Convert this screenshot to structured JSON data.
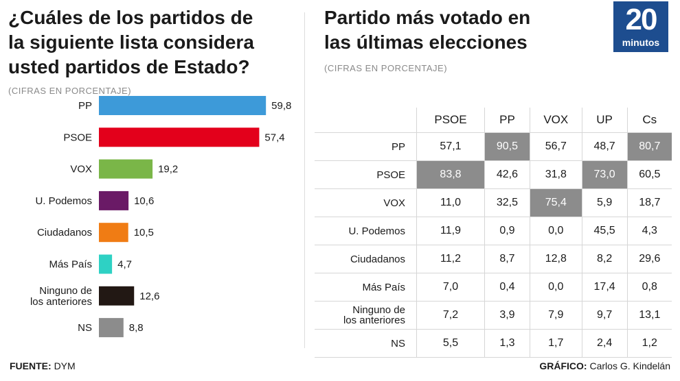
{
  "left_panel": {
    "title_lines": [
      "¿Cuáles de los partidos de",
      "la siguiente lista considera",
      "usted partidos de Estado?"
    ],
    "subtitle": "(CIFRAS EN PORCENTAJE)"
  },
  "right_panel": {
    "title_lines": [
      "Partido más votado en",
      "las últimas elecciones"
    ],
    "subtitle": "(CIFRAS EN PORCENTAJE)"
  },
  "logo": {
    "number": "20",
    "word": "minutos",
    "color": "#1d4d8f"
  },
  "chart_data": [
    {
      "type": "bar",
      "orientation": "horizontal",
      "title": "¿Cuáles de los partidos de la siguiente lista considera usted partidos de Estado?",
      "subtitle": "(CIFRAS EN PORCENTAJE)",
      "categories": [
        "PP",
        "PSOE",
        "VOX",
        "U. Podemos",
        "Ciudadanos",
        "Más País",
        "Ninguno de los anteriores",
        "NS"
      ],
      "label_lines": [
        [
          "PP"
        ],
        [
          "PSOE"
        ],
        [
          "VOX"
        ],
        [
          "U. Podemos"
        ],
        [
          "Ciudadanos"
        ],
        [
          "Más País"
        ],
        [
          "Ninguno de",
          "los anteriores"
        ],
        [
          "NS"
        ]
      ],
      "values": [
        59.8,
        57.4,
        19.2,
        10.6,
        10.5,
        4.7,
        12.6,
        8.8
      ],
      "value_labels": [
        "59,8",
        "57,4",
        "19,2",
        "10,6",
        "10,5",
        "4,7",
        "12,6",
        "8,8"
      ],
      "colors": [
        "#3d9ad9",
        "#e3001b",
        "#7ab648",
        "#6a1a66",
        "#f07c14",
        "#2ed1c4",
        "#221814",
        "#8c8c8c"
      ],
      "xlim": [
        0,
        60
      ]
    },
    {
      "type": "table",
      "title": "Partido más votado en las últimas elecciones",
      "subtitle": "(CIFRAS EN PORCENTAJE)",
      "columns": [
        "PSOE",
        "PP",
        "VOX",
        "UP",
        "Cs"
      ],
      "rows": [
        {
          "label": [
            "PP"
          ],
          "values": [
            "57,1",
            "90,5",
            "56,7",
            "48,7",
            "80,7"
          ],
          "highlight": [
            false,
            true,
            false,
            false,
            true
          ]
        },
        {
          "label": [
            "PSOE"
          ],
          "values": [
            "83,8",
            "42,6",
            "31,8",
            "73,0",
            "60,5"
          ],
          "highlight": [
            true,
            false,
            false,
            true,
            false
          ]
        },
        {
          "label": [
            "VOX"
          ],
          "values": [
            "11,0",
            "32,5",
            "75,4",
            "5,9",
            "18,7"
          ],
          "highlight": [
            false,
            false,
            true,
            false,
            false
          ]
        },
        {
          "label": [
            "U. Podemos"
          ],
          "values": [
            "11,9",
            "0,9",
            "0,0",
            "45,5",
            "4,3"
          ],
          "highlight": [
            false,
            false,
            false,
            false,
            false
          ]
        },
        {
          "label": [
            "Ciudadanos"
          ],
          "values": [
            "11,2",
            "8,7",
            "12,8",
            "8,2",
            "29,6"
          ],
          "highlight": [
            false,
            false,
            false,
            false,
            false
          ]
        },
        {
          "label": [
            "Más País"
          ],
          "values": [
            "7,0",
            "0,4",
            "0,0",
            "17,4",
            "0,8"
          ],
          "highlight": [
            false,
            false,
            false,
            false,
            false
          ]
        },
        {
          "label": [
            "Ninguno de",
            "los anteriores"
          ],
          "values": [
            "7,2",
            "3,9",
            "7,9",
            "9,7",
            "13,1"
          ],
          "highlight": [
            false,
            false,
            false,
            false,
            false
          ]
        },
        {
          "label": [
            "NS"
          ],
          "values": [
            "5,5",
            "1,3",
            "1,7",
            "2,4",
            "1,2"
          ],
          "highlight": [
            false,
            false,
            false,
            false,
            false
          ]
        }
      ],
      "highlight_color": "#8c8c8c"
    }
  ],
  "footer": {
    "source_label": "FUENTE:",
    "source_value": "DYM",
    "credit_label": "GRÁFICO:",
    "credit_value": "Carlos G. Kindelán"
  }
}
